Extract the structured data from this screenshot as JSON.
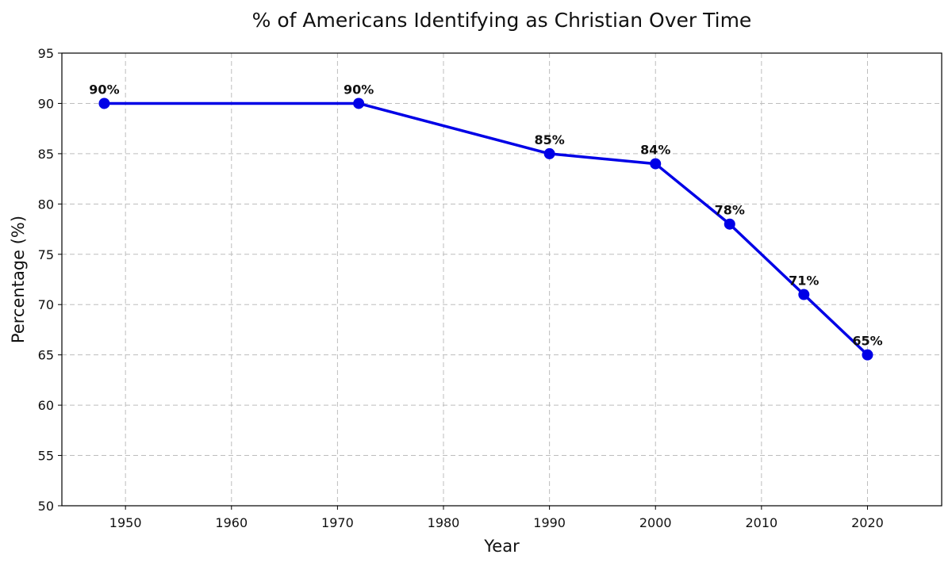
{
  "chart_data": {
    "type": "line",
    "title": "% of Americans Identifying as Christian Over Time",
    "xlabel": "Year",
    "ylabel": "Percentage (%)",
    "xlim": [
      1944,
      2027
    ],
    "ylim": [
      50,
      95
    ],
    "x_ticks": [
      1950,
      1960,
      1970,
      1980,
      1990,
      2000,
      2010,
      2020
    ],
    "y_ticks": [
      50,
      55,
      60,
      65,
      70,
      75,
      80,
      85,
      90,
      95
    ],
    "grid": true,
    "series": [
      {
        "x": [
          1948,
          1972,
          1990,
          2000,
          2007,
          2014,
          2020
        ],
        "values": [
          90,
          90,
          85,
          84,
          78,
          71,
          65
        ],
        "labels": [
          "90%",
          "90%",
          "85%",
          "84%",
          "78%",
          "71%",
          "65%"
        ],
        "color": "#0000e6",
        "marker": "circle"
      }
    ]
  }
}
